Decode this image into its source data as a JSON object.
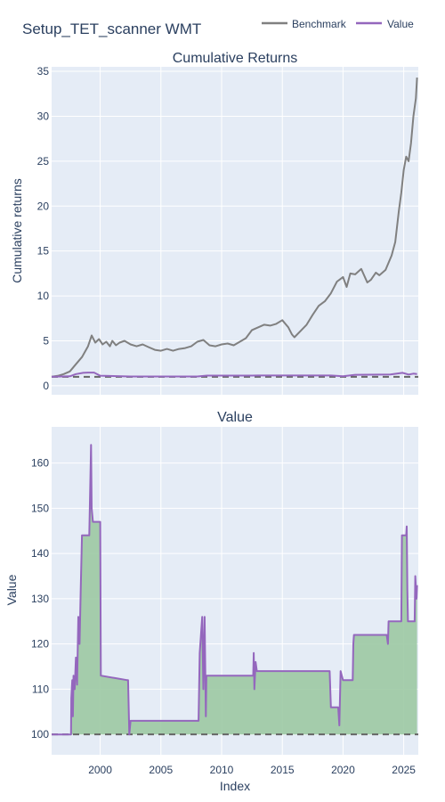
{
  "figure": {
    "title": "Setup_TET_scanner WMT",
    "legend": {
      "placement": "top-right",
      "items": [
        {
          "label": "Benchmark",
          "color": "#808080"
        },
        {
          "label": "Value",
          "color": "#9467bd"
        }
      ]
    },
    "colors": {
      "plot_bg": "#e5ecf6",
      "grid": "#ffffff",
      "fill": "#9cc9a3",
      "text": "#2a3f5f",
      "baseline": "#666666"
    }
  },
  "chart_data": [
    {
      "type": "line",
      "title": "Cumulative Returns",
      "xlabel": "",
      "ylabel": "Cumulative returns",
      "xlim": [
        1996.0,
        2026.2
      ],
      "ylim": [
        -1,
        35.5
      ],
      "grid": true,
      "x_ticks": [
        2000,
        2005,
        2010,
        2015,
        2020,
        2025
      ],
      "y_ticks": [
        0,
        5,
        10,
        15,
        20,
        25,
        30,
        35
      ],
      "y_tick_labels": [
        "0",
        "5",
        "10",
        "15",
        "20",
        "25",
        "30",
        "35"
      ],
      "baseline": 1,
      "series": [
        {
          "name": "Benchmark",
          "color": "#808080",
          "x": [
            1996.0,
            1996.5,
            1997.0,
            1997.5,
            1998.0,
            1998.5,
            1999.0,
            1999.3,
            1999.6,
            1999.9,
            2000.2,
            2000.5,
            2000.8,
            2001.0,
            2001.3,
            2001.6,
            2002.0,
            2002.5,
            2003.0,
            2003.5,
            2004.0,
            2004.5,
            2005.0,
            2005.5,
            2006.0,
            2006.5,
            2007.0,
            2007.5,
            2008.0,
            2008.5,
            2009.0,
            2009.5,
            2010.0,
            2010.5,
            2011.0,
            2011.5,
            2012.0,
            2012.5,
            2013.0,
            2013.5,
            2014.0,
            2014.5,
            2015.0,
            2015.5,
            2015.8,
            2016.0,
            2016.5,
            2017.0,
            2017.5,
            2018.0,
            2018.5,
            2019.0,
            2019.5,
            2020.0,
            2020.3,
            2020.6,
            2021.0,
            2021.5,
            2022.0,
            2022.3,
            2022.7,
            2023.0,
            2023.5,
            2024.0,
            2024.3,
            2024.6,
            2024.8,
            2025.0,
            2025.2,
            2025.4,
            2025.6,
            2025.8,
            2026.0,
            2026.1
          ],
          "y": [
            1.0,
            1.1,
            1.3,
            1.6,
            2.4,
            3.2,
            4.4,
            5.6,
            4.8,
            5.2,
            4.6,
            4.9,
            4.4,
            5.0,
            4.5,
            4.8,
            5.0,
            4.6,
            4.4,
            4.6,
            4.3,
            4.0,
            3.9,
            4.1,
            3.9,
            4.1,
            4.2,
            4.4,
            4.9,
            5.1,
            4.5,
            4.4,
            4.6,
            4.7,
            4.5,
            4.9,
            5.3,
            6.2,
            6.5,
            6.8,
            6.7,
            6.9,
            7.3,
            6.5,
            5.7,
            5.4,
            6.1,
            6.8,
            7.9,
            8.9,
            9.4,
            10.3,
            11.6,
            12.1,
            11.0,
            12.5,
            12.4,
            13.0,
            11.5,
            11.8,
            12.6,
            12.3,
            12.9,
            14.5,
            16.0,
            19.5,
            21.5,
            24.0,
            25.5,
            25.0,
            27.0,
            30.0,
            32.0,
            34.3
          ]
        },
        {
          "name": "Value",
          "color": "#9467bd",
          "x": [
            1996.0,
            1997.5,
            1998.0,
            1998.6,
            1999.0,
            1999.5,
            2000.0,
            2002.5,
            2008.0,
            2008.8,
            2012.5,
            2013.0,
            2019.0,
            2020.0,
            2021.0,
            2023.9,
            2024.9,
            2025.4,
            2025.8,
            2026.1
          ],
          "y": [
            1.0,
            1.05,
            1.3,
            1.44,
            1.47,
            1.47,
            1.12,
            1.03,
            1.03,
            1.13,
            1.13,
            1.14,
            1.14,
            1.06,
            1.22,
            1.25,
            1.44,
            1.25,
            1.35,
            1.3
          ]
        }
      ]
    },
    {
      "type": "area",
      "title": "Value",
      "xlabel": "Index",
      "ylabel": "Value",
      "xlim": [
        1996.0,
        2026.2
      ],
      "ylim": [
        95.5,
        168
      ],
      "grid": true,
      "x_ticks": [
        2000,
        2005,
        2010,
        2015,
        2020,
        2025
      ],
      "x_tick_labels": [
        "2000",
        "2005",
        "2010",
        "2015",
        "2020",
        "2025"
      ],
      "y_ticks": [
        100,
        110,
        120,
        130,
        140,
        150,
        160
      ],
      "y_tick_labels": [
        "100",
        "110",
        "120",
        "130",
        "140",
        "150",
        "160"
      ],
      "baseline": 100,
      "series": [
        {
          "name": "Value",
          "color": "#9467bd",
          "x": [
            1996.0,
            1997.6,
            1997.62,
            1997.7,
            1997.75,
            1997.8,
            1997.9,
            1998.0,
            1998.1,
            1998.2,
            1998.3,
            1998.4,
            1998.5,
            1998.6,
            1998.7,
            1999.1,
            1999.2,
            1999.25,
            1999.3,
            1999.4,
            1999.5,
            1999.7,
            2000.0,
            2000.05,
            2002.2,
            2002.3,
            2002.4,
            2002.5,
            2008.1,
            2008.2,
            2008.3,
            2008.4,
            2008.5,
            2008.6,
            2008.7,
            2008.75,
            2012.6,
            2012.65,
            2012.7,
            2012.8,
            2012.9,
            2018.9,
            2019.0,
            2019.6,
            2019.7,
            2019.8,
            2020.0,
            2020.1,
            2020.8,
            2020.85,
            2020.9,
            2023.6,
            2023.7,
            2023.75,
            2024.8,
            2024.85,
            2025.2,
            2025.25,
            2025.3,
            2025.35,
            2025.9,
            2025.95,
            2026.05,
            2026.1
          ],
          "y": [
            100,
            100,
            108,
            112,
            104,
            113,
            110,
            117,
            111,
            126,
            120,
            132,
            144,
            144,
            144,
            144,
            158,
            164,
            150,
            147,
            147,
            147,
            147,
            113,
            112,
            112,
            100,
            103,
            103,
            118,
            122,
            126,
            110,
            126,
            104,
            113,
            113,
            118,
            110,
            116,
            114,
            114,
            106,
            106,
            102,
            114,
            112,
            112,
            112,
            120,
            122,
            122,
            120,
            125,
            125,
            144,
            144,
            146,
            132,
            125,
            125,
            135,
            130,
            133
          ]
        }
      ]
    }
  ]
}
